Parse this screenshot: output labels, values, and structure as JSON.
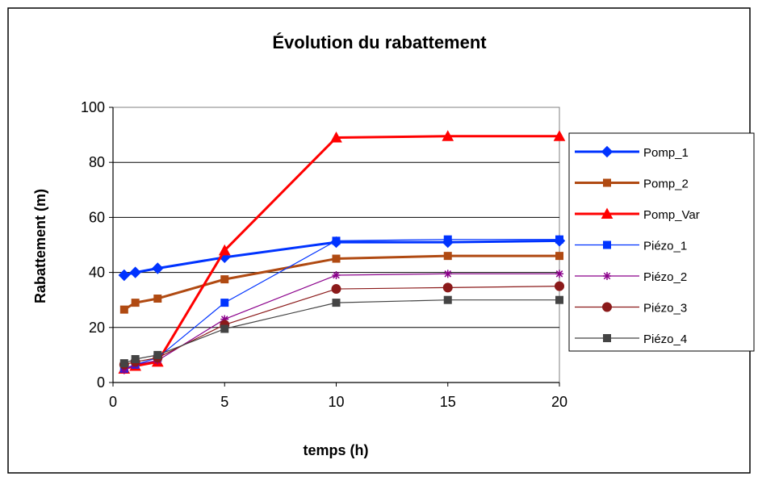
{
  "chart_data": {
    "type": "line",
    "title": "Évolution du rabattement",
    "xlabel": "temps (h)",
    "ylabel": "Rabattement (m)",
    "x": [
      0.5,
      1,
      2,
      5,
      10,
      15,
      20
    ],
    "xlim": [
      0,
      20
    ],
    "ylim": [
      0,
      100
    ],
    "x_ticks": [
      0,
      5,
      10,
      15,
      20
    ],
    "y_ticks": [
      0,
      20,
      40,
      60,
      80,
      100
    ],
    "x_tick_labels": [
      "0",
      "5",
      "10",
      "15",
      "20"
    ],
    "y_tick_labels": [
      "0",
      "20",
      "40",
      "60",
      "80",
      "100"
    ],
    "grid": "horizontal",
    "legend_position": "right",
    "series": [
      {
        "name": "Pomp_1",
        "values": [
          39,
          40,
          41.5,
          45.5,
          51,
          51,
          51.5
        ],
        "color": "#0033ff",
        "marker": "diamond",
        "line": "thick"
      },
      {
        "name": "Pomp_2",
        "values": [
          26.5,
          29,
          30.5,
          37.5,
          45,
          46,
          46
        ],
        "color": "#b04a12",
        "marker": "square",
        "line": "thick"
      },
      {
        "name": "Pomp_Var",
        "values": [
          5,
          6,
          7.5,
          48,
          89,
          89.5,
          89.5
        ],
        "color": "#ff0000",
        "marker": "triangle",
        "line": "thick"
      },
      {
        "name": "Piézo_1",
        "values": [
          5,
          6.5,
          9,
          29,
          51.5,
          52,
          52
        ],
        "color": "#0033ff",
        "marker": "square",
        "line": "thin"
      },
      {
        "name": "Piézo_2",
        "values": [
          4.5,
          6.5,
          8,
          23,
          39,
          39.5,
          39.5
        ],
        "color": "#8b008b",
        "marker": "star",
        "line": "thin"
      },
      {
        "name": "Piézo_3",
        "values": [
          6.5,
          7.5,
          9,
          21,
          34,
          34.5,
          35
        ],
        "color": "#8b1a1a",
        "marker": "circle",
        "line": "thin"
      },
      {
        "name": "Piézo_4",
        "values": [
          7,
          8.5,
          10,
          19.5,
          29,
          30,
          30
        ],
        "color": "#444444",
        "marker": "square",
        "line": "thin"
      }
    ]
  }
}
